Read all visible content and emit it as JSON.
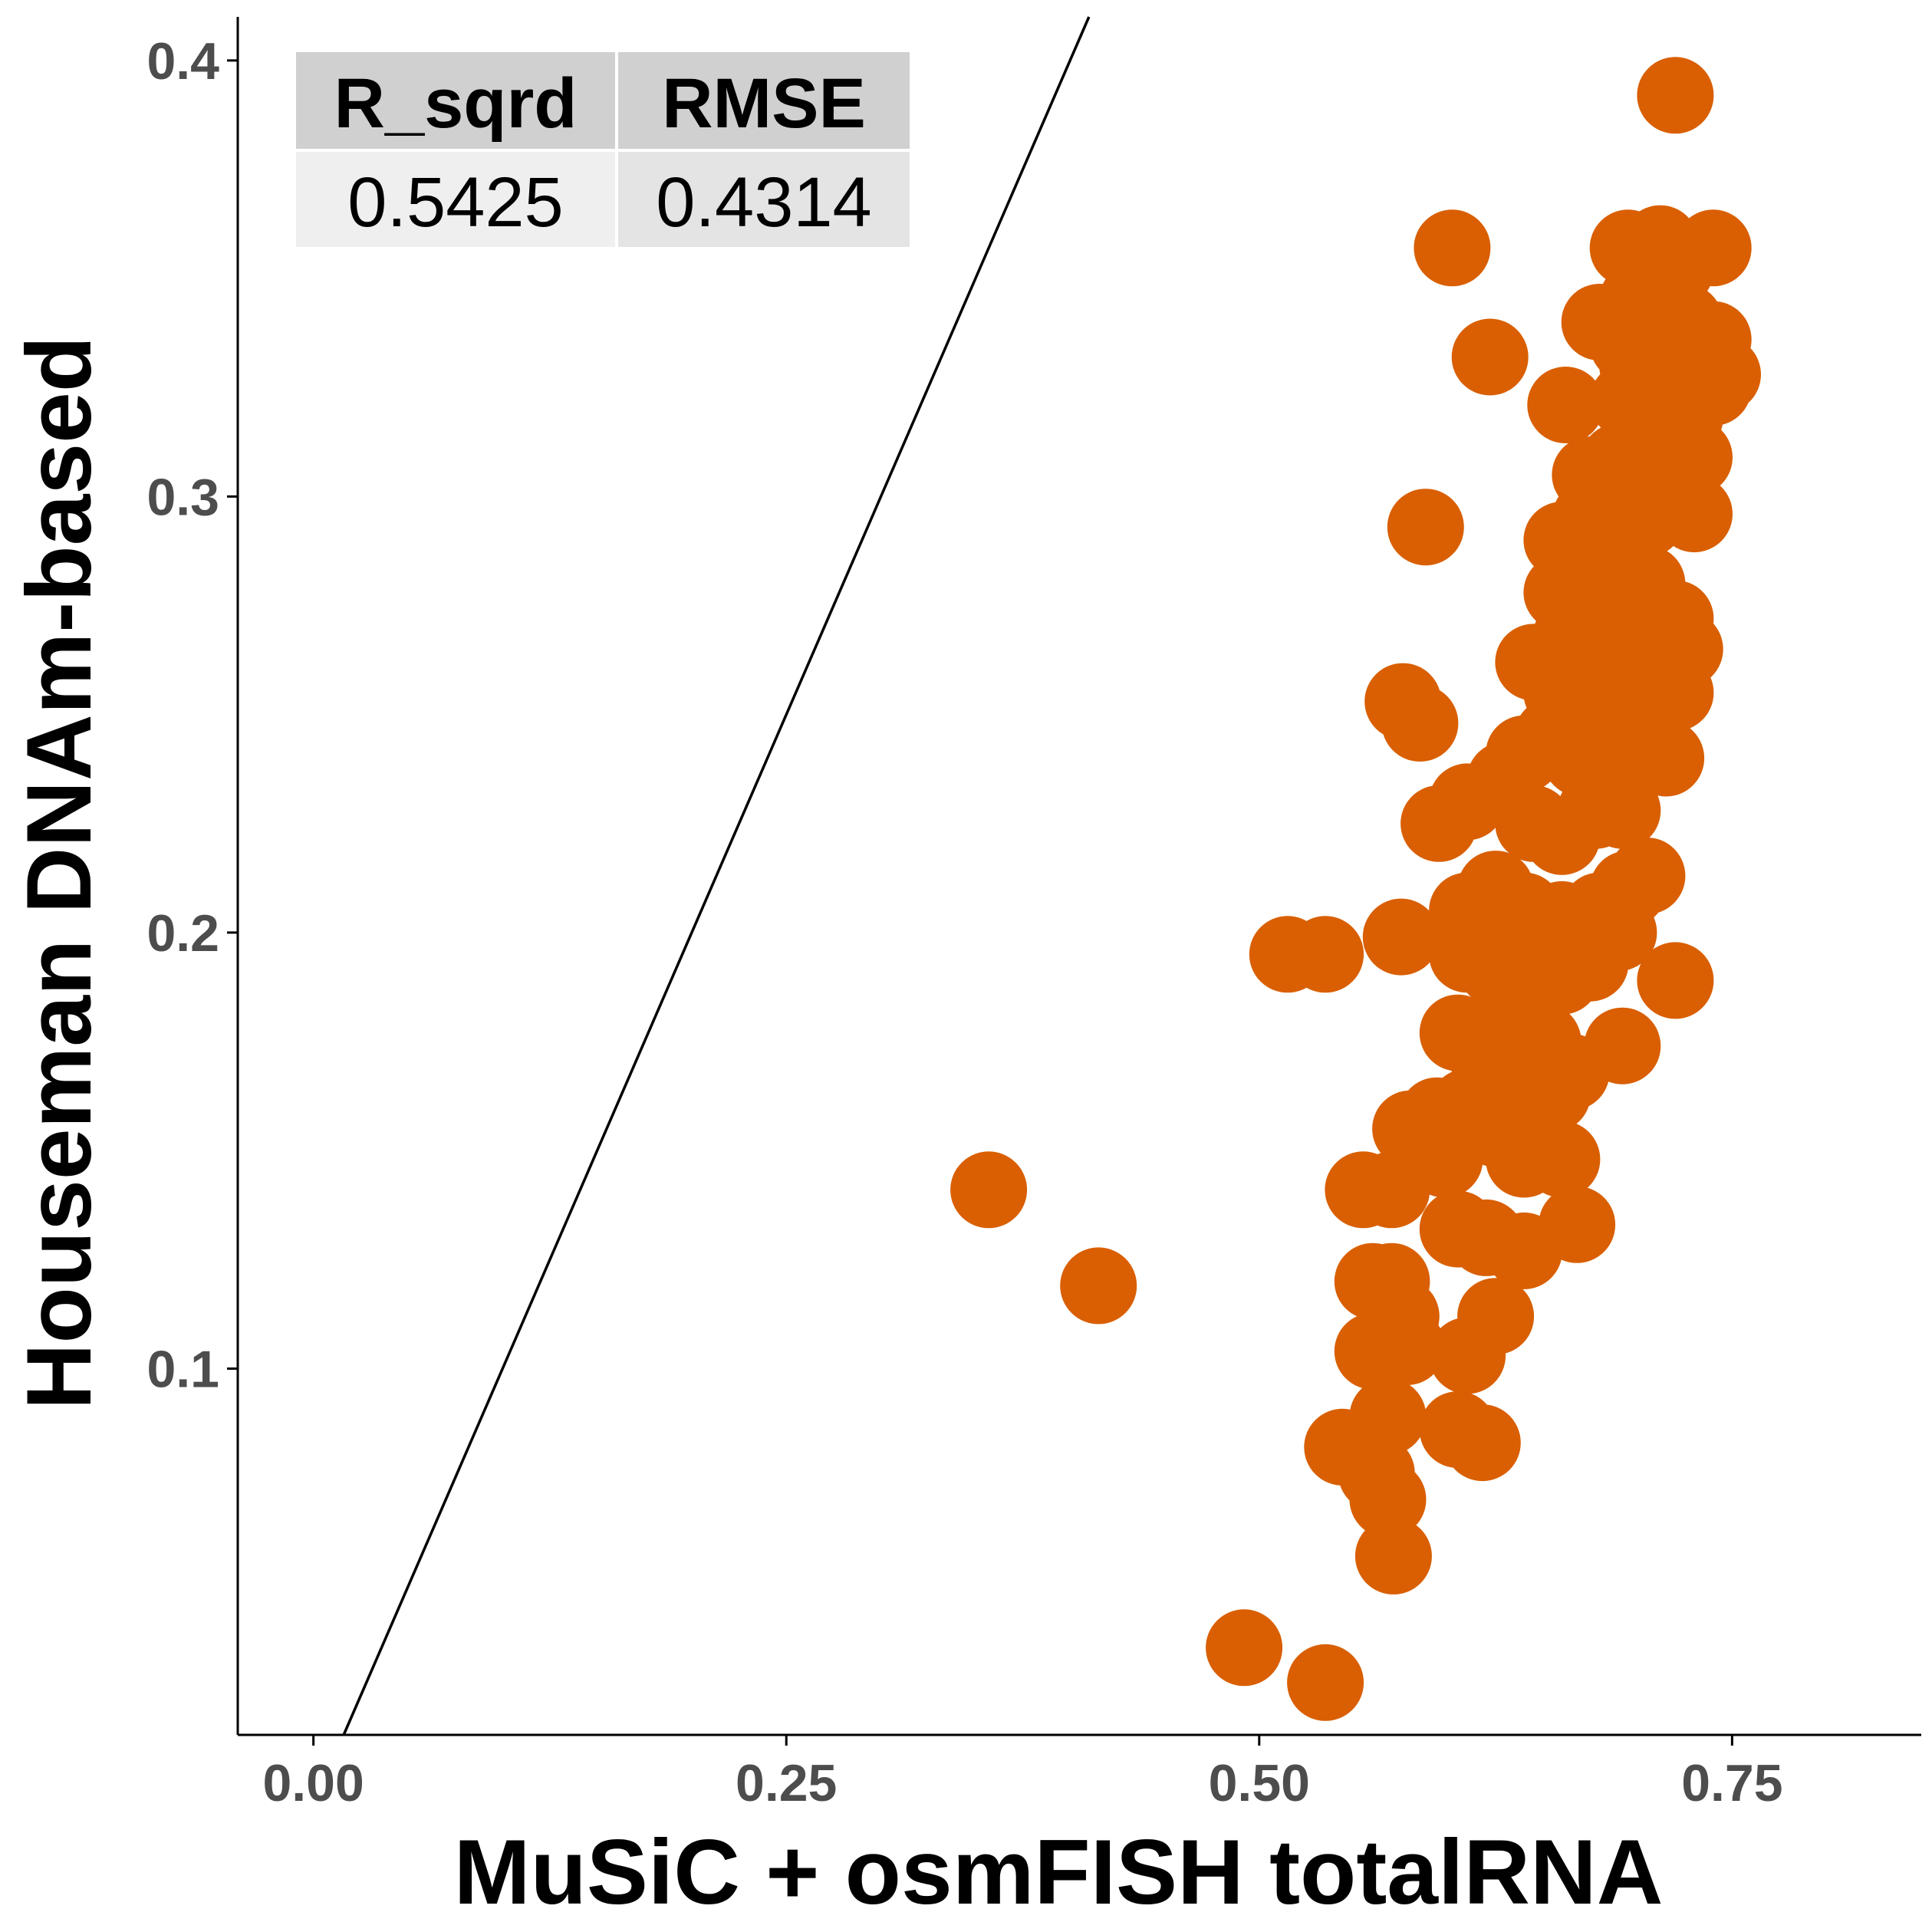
{
  "chart_data": {
    "type": "scatter",
    "xlabel": "MuSiC + osmFISH totalRNA",
    "ylabel": "Houseman DNAm-based",
    "xlim": [
      -0.04,
      0.85
    ],
    "ylim": [
      0.016,
      0.41
    ],
    "xticks": [
      0.0,
      0.25,
      0.5,
      0.75
    ],
    "xtick_labels": [
      "0.00",
      "0.25",
      "0.50",
      "0.75"
    ],
    "yticks": [
      0.1,
      0.2,
      0.3,
      0.4
    ],
    "ytick_labels": [
      "0.1",
      "0.2",
      "0.3",
      "0.4"
    ],
    "grid": false,
    "legend": "none",
    "point_color": "#D95F02",
    "reference_line": {
      "slope": 1,
      "intercept": 0
    },
    "stats_table": {
      "headers": [
        "R_sqrd",
        "RMSE"
      ],
      "values": [
        "0.5425",
        "0.4314"
      ]
    },
    "points": [
      [
        0.357,
        0.141
      ],
      [
        0.415,
        0.119
      ],
      [
        0.492,
        0.036
      ],
      [
        0.535,
        0.028
      ],
      [
        0.515,
        0.195
      ],
      [
        0.535,
        0.195
      ],
      [
        0.575,
        0.199
      ],
      [
        0.576,
        0.253
      ],
      [
        0.585,
        0.248
      ],
      [
        0.588,
        0.293
      ],
      [
        0.602,
        0.357
      ],
      [
        0.622,
        0.332
      ],
      [
        0.662,
        0.321
      ],
      [
        0.544,
        0.082
      ],
      [
        0.562,
        0.076
      ],
      [
        0.568,
        0.07
      ],
      [
        0.571,
        0.057
      ],
      [
        0.568,
        0.089
      ],
      [
        0.56,
        0.104
      ],
      [
        0.578,
        0.105
      ],
      [
        0.56,
        0.12
      ],
      [
        0.57,
        0.12
      ],
      [
        0.575,
        0.112
      ],
      [
        0.555,
        0.141
      ],
      [
        0.57,
        0.141
      ],
      [
        0.58,
        0.155
      ],
      [
        0.598,
        0.148
      ],
      [
        0.605,
        0.086
      ],
      [
        0.618,
        0.083
      ],
      [
        0.61,
        0.103
      ],
      [
        0.625,
        0.112
      ],
      [
        0.605,
        0.132
      ],
      [
        0.62,
        0.13
      ],
      [
        0.64,
        0.127
      ],
      [
        0.64,
        0.148
      ],
      [
        0.66,
        0.148
      ],
      [
        0.668,
        0.133
      ],
      [
        0.594,
        0.158
      ],
      [
        0.61,
        0.16
      ],
      [
        0.625,
        0.155
      ],
      [
        0.64,
        0.163
      ],
      [
        0.655,
        0.163
      ],
      [
        0.605,
        0.177
      ],
      [
        0.62,
        0.172
      ],
      [
        0.635,
        0.18
      ],
      [
        0.65,
        0.175
      ],
      [
        0.665,
        0.168
      ],
      [
        0.692,
        0.174
      ],
      [
        0.61,
        0.195
      ],
      [
        0.625,
        0.192
      ],
      [
        0.64,
        0.19
      ],
      [
        0.66,
        0.19
      ],
      [
        0.675,
        0.193
      ],
      [
        0.69,
        0.2
      ],
      [
        0.72,
        0.189
      ],
      [
        0.61,
        0.205
      ],
      [
        0.625,
        0.21
      ],
      [
        0.64,
        0.205
      ],
      [
        0.66,
        0.203
      ],
      [
        0.68,
        0.205
      ],
      [
        0.695,
        0.21
      ],
      [
        0.705,
        0.213
      ],
      [
        0.595,
        0.225
      ],
      [
        0.61,
        0.23
      ],
      [
        0.63,
        0.235
      ],
      [
        0.645,
        0.225
      ],
      [
        0.66,
        0.222
      ],
      [
        0.678,
        0.228
      ],
      [
        0.692,
        0.228
      ],
      [
        0.64,
        0.241
      ],
      [
        0.655,
        0.245
      ],
      [
        0.67,
        0.24
      ],
      [
        0.685,
        0.242
      ],
      [
        0.7,
        0.24
      ],
      [
        0.715,
        0.24
      ],
      [
        0.645,
        0.262
      ],
      [
        0.66,
        0.255
      ],
      [
        0.675,
        0.252
      ],
      [
        0.69,
        0.258
      ],
      [
        0.705,
        0.255
      ],
      [
        0.72,
        0.255
      ],
      [
        0.665,
        0.268
      ],
      [
        0.68,
        0.265
      ],
      [
        0.695,
        0.27
      ],
      [
        0.71,
        0.265
      ],
      [
        0.725,
        0.265
      ],
      [
        0.66,
        0.278
      ],
      [
        0.675,
        0.282
      ],
      [
        0.69,
        0.285
      ],
      [
        0.705,
        0.28
      ],
      [
        0.72,
        0.272
      ],
      [
        0.66,
        0.29
      ],
      [
        0.675,
        0.295
      ],
      [
        0.69,
        0.298
      ],
      [
        0.705,
        0.295
      ],
      [
        0.72,
        0.298
      ],
      [
        0.73,
        0.296
      ],
      [
        0.675,
        0.305
      ],
      [
        0.69,
        0.308
      ],
      [
        0.705,
        0.31
      ],
      [
        0.72,
        0.308
      ],
      [
        0.73,
        0.309
      ],
      [
        0.695,
        0.322
      ],
      [
        0.71,
        0.32
      ],
      [
        0.725,
        0.318
      ],
      [
        0.74,
        0.325
      ],
      [
        0.745,
        0.328
      ],
      [
        0.68,
        0.34
      ],
      [
        0.695,
        0.335
      ],
      [
        0.71,
        0.335
      ],
      [
        0.725,
        0.34
      ],
      [
        0.74,
        0.336
      ],
      [
        0.695,
        0.357
      ],
      [
        0.712,
        0.358
      ],
      [
        0.72,
        0.352
      ],
      [
        0.74,
        0.357
      ],
      [
        0.72,
        0.392
      ],
      [
        0.7,
        0.345
      ],
      [
        0.7,
        0.33
      ]
    ]
  }
}
